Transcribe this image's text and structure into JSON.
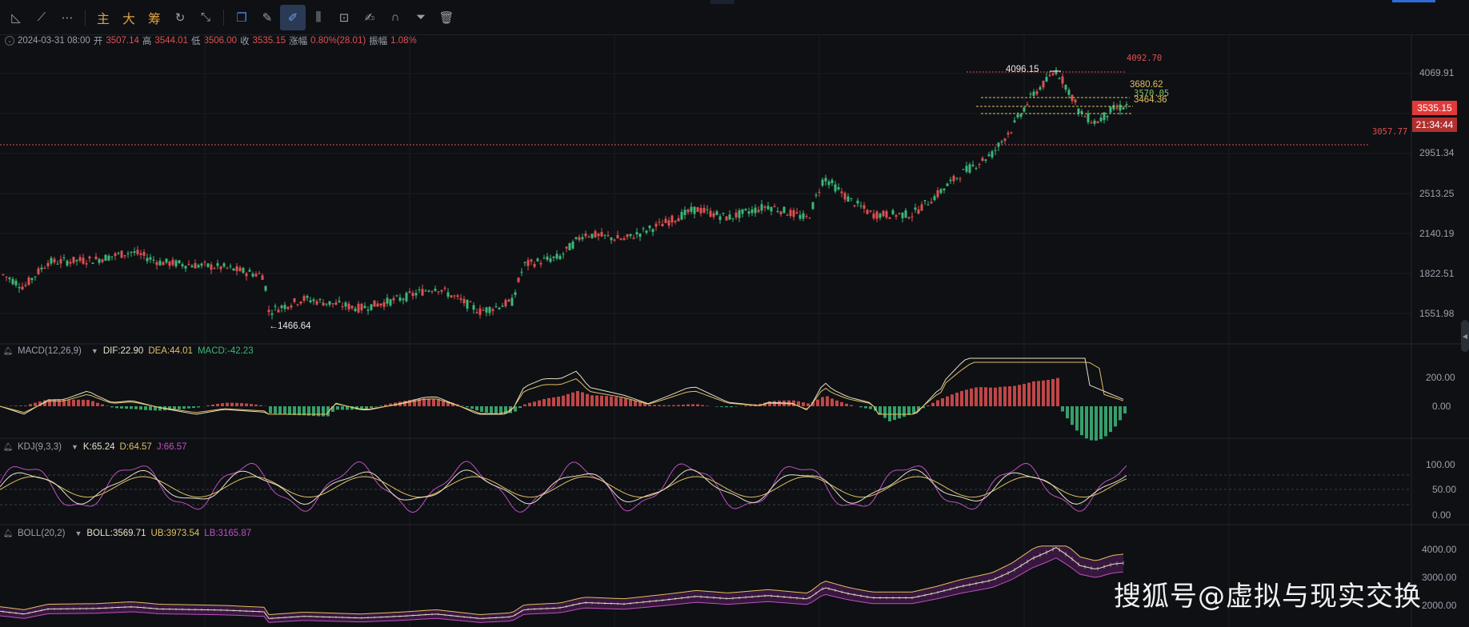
{
  "toolbar": {
    "tools": [
      "line-tool-icon",
      "trend-line-icon",
      "more-dots-icon"
    ],
    "text_buttons": [
      "主",
      "大",
      "筹"
    ],
    "tools2": [
      "cycle-icon",
      "measure-icon"
    ],
    "tools3": [
      "copy-icon",
      "ruler-icon",
      "brush-icon",
      "candles-icon",
      "lock-icon",
      "edit-icon",
      "magnet-icon",
      "filter-icon",
      "trash-icon"
    ]
  },
  "ohlc": {
    "date": "2024-03-31 08:00",
    "open_label": "开",
    "open": "3507.14",
    "high_label": "高",
    "high": "3544.01",
    "low_label": "低",
    "low": "3506.00",
    "close_label": "收",
    "close": "3535.15",
    "change_label": "涨幅",
    "change": "0.80%(28.01)",
    "amp_label": "振幅",
    "amp": "1.08%"
  },
  "price_axis": [
    "4069.91",
    "3535.15",
    "2951.34",
    "2513.25",
    "2140.19",
    "1822.51",
    "1551.98"
  ],
  "price_tag": {
    "last": "3535.15",
    "countdown": "21:34:44"
  },
  "annotations": {
    "high": "4096.15",
    "low": "1466.64",
    "h_line_top": "4092.70",
    "level1": "3680.62",
    "level2": "3570.05",
    "level3": "3464.36",
    "level_red": "3057.77"
  },
  "macd": {
    "name": "MACD(12,26,9)",
    "dif": "DIF:22.90",
    "dea": "DEA:44.01",
    "macd": "MACD:-42.23",
    "axis": [
      "200.00",
      "0.00"
    ]
  },
  "kdj": {
    "name": "KDJ(9,3,3)",
    "k": "K:65.24",
    "d": "D:64.57",
    "j": "J:66.57",
    "axis": [
      "100.00",
      "50.00",
      "0.00"
    ]
  },
  "boll": {
    "name": "BOLL(20,2)",
    "mid": "BOLL:3569.71",
    "ub": "UB:3973.54",
    "lb": "LB:3165.87",
    "axis": [
      "4000.00",
      "3000.00",
      "2000.00"
    ]
  },
  "watermark": "搜狐号@虚拟与现实交换",
  "colors": {
    "up": "#e05050",
    "down": "#3cb878",
    "dif": "#e8e0c8",
    "dea": "#e0c060",
    "k": "#e8e0c8",
    "d": "#e0c060",
    "j": "#c050c0",
    "ub": "#e0c060",
    "lb": "#c050c0"
  }
}
